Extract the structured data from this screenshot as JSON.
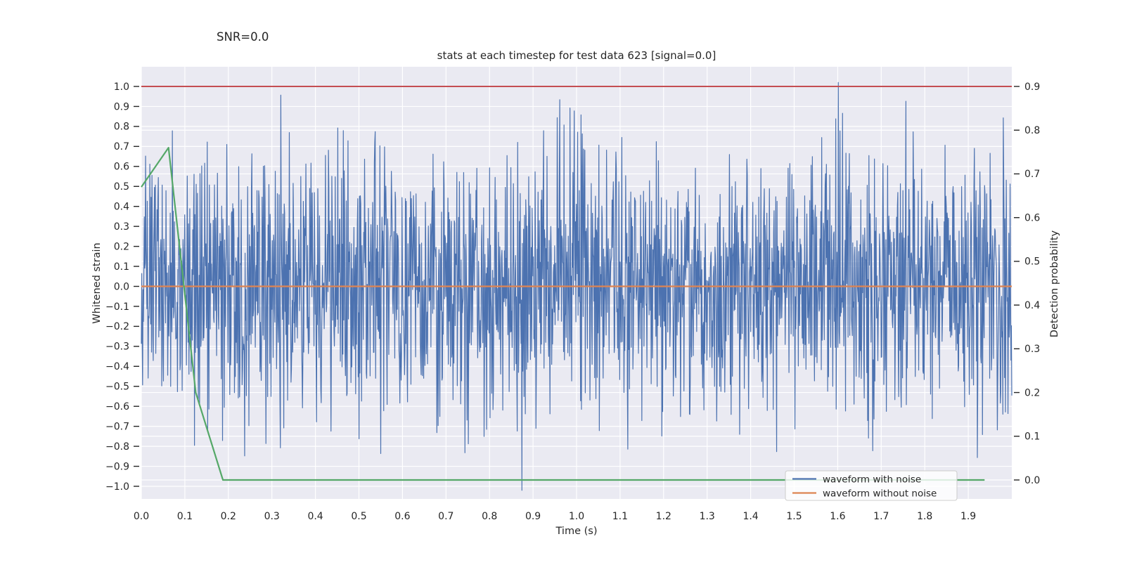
{
  "figure": {
    "snr_label": "SNR=0.0",
    "title": "stats at each timestep for test data 623 [signal=0.0]",
    "background": "#ffffff"
  },
  "axes": {
    "plot_bg": "#eaeaf2",
    "grid_color": "#ffffff",
    "text_color": "#262626",
    "x": {
      "label": "Time (s)",
      "tick_values": [
        0.0,
        0.1,
        0.2,
        0.3,
        0.4,
        0.5,
        0.6,
        0.7,
        0.8,
        0.9,
        1.0,
        1.1,
        1.2,
        1.3,
        1.4,
        1.5,
        1.6,
        1.7,
        1.8,
        1.9
      ],
      "tick_labels": [
        "0.0",
        "0.1",
        "0.2",
        "0.3",
        "0.4",
        "0.5",
        "0.6",
        "0.7",
        "0.8",
        "0.9",
        "1.0",
        "1.1",
        "1.2",
        "1.3",
        "1.4",
        "1.5",
        "1.6",
        "1.7",
        "1.8",
        "1.9"
      ],
      "lim": [
        0.0,
        2.0
      ]
    },
    "y_left": {
      "label": "Whitened strain",
      "tick_values": [
        1.0,
        0.9,
        0.8,
        0.7,
        0.6,
        0.5,
        0.4,
        0.3,
        0.2,
        0.1,
        0.0,
        -0.1,
        -0.2,
        -0.3,
        -0.4,
        -0.5,
        -0.6,
        -0.7,
        -0.8,
        -0.9,
        -1.0
      ],
      "tick_labels": [
        "1.0",
        "0.9",
        "0.8",
        "0.7",
        "0.6",
        "0.5",
        "0.4",
        "0.3",
        "0.2",
        "0.1",
        "0.0",
        "−0.1",
        "−0.2",
        "−0.3",
        "−0.4",
        "−0.5",
        "−0.6",
        "−0.7",
        "−0.8",
        "−0.9",
        "−1.0"
      ],
      "lim": [
        -1.06,
        1.1
      ]
    },
    "y_right": {
      "label": "Detection probability",
      "tick_values": [
        0.9,
        0.8,
        0.7,
        0.6,
        0.5,
        0.4,
        0.3,
        0.2,
        0.1,
        0.0
      ],
      "tick_labels": [
        "0.9",
        "0.8",
        "0.7",
        "0.6",
        "0.5",
        "0.4",
        "0.3",
        "0.2",
        "0.1",
        "0.0"
      ],
      "lim": [
        -0.05,
        0.945
      ]
    }
  },
  "legend": {
    "entries": [
      {
        "label": "waveform with noise",
        "color": "#4c72b0"
      },
      {
        "label": "waveform without noise",
        "color": "#dd8452"
      }
    ]
  },
  "chart_data": {
    "type": "line",
    "title": "stats at each timestep for test data 623 [signal=0.0]",
    "annotations": [
      "SNR=0.0"
    ],
    "xlabel": "Time (s)",
    "ylabel_left": "Whitened strain",
    "ylabel_right": "Detection probability",
    "x_range": [
      0.0,
      2.0
    ],
    "y_left_range": [
      -1.06,
      1.1
    ],
    "y_right_range": [
      -0.05,
      0.945
    ],
    "grid": true,
    "legend_position": "lower right",
    "series": [
      {
        "name": "waveform with noise",
        "axis": "left",
        "color": "#4c72b0",
        "kind": "gaussian_noise",
        "samples": 2048,
        "sigma": 0.32,
        "clip": 1.02,
        "seed": 623,
        "t_start": 0.0,
        "t_end": 2.0,
        "line_width": 1.2
      },
      {
        "name": "waveform without noise",
        "axis": "left",
        "color": "#dd8452",
        "kind": "constant",
        "value": 0.0,
        "t_start": 0.0,
        "t_end": 2.0,
        "line_width": 2.2
      },
      {
        "name": "detection probability",
        "axis": "right",
        "color": "#55a868",
        "kind": "points",
        "t_start": 0.0,
        "t_step": 0.0625,
        "values": [
          0.67,
          0.76,
          0.2,
          0,
          0,
          0,
          0,
          0,
          0,
          0,
          0,
          0,
          0,
          0,
          0,
          0,
          0,
          0,
          0,
          0,
          0,
          0,
          0,
          0,
          0,
          0,
          0,
          0,
          0,
          0,
          0,
          0
        ],
        "line_width": 2.2
      },
      {
        "name": "detection threshold",
        "axis": "right",
        "color": "#c44e52",
        "kind": "constant",
        "value": 0.9,
        "t_start": 0.0,
        "t_end": 2.0,
        "line_width": 2.0
      }
    ]
  }
}
